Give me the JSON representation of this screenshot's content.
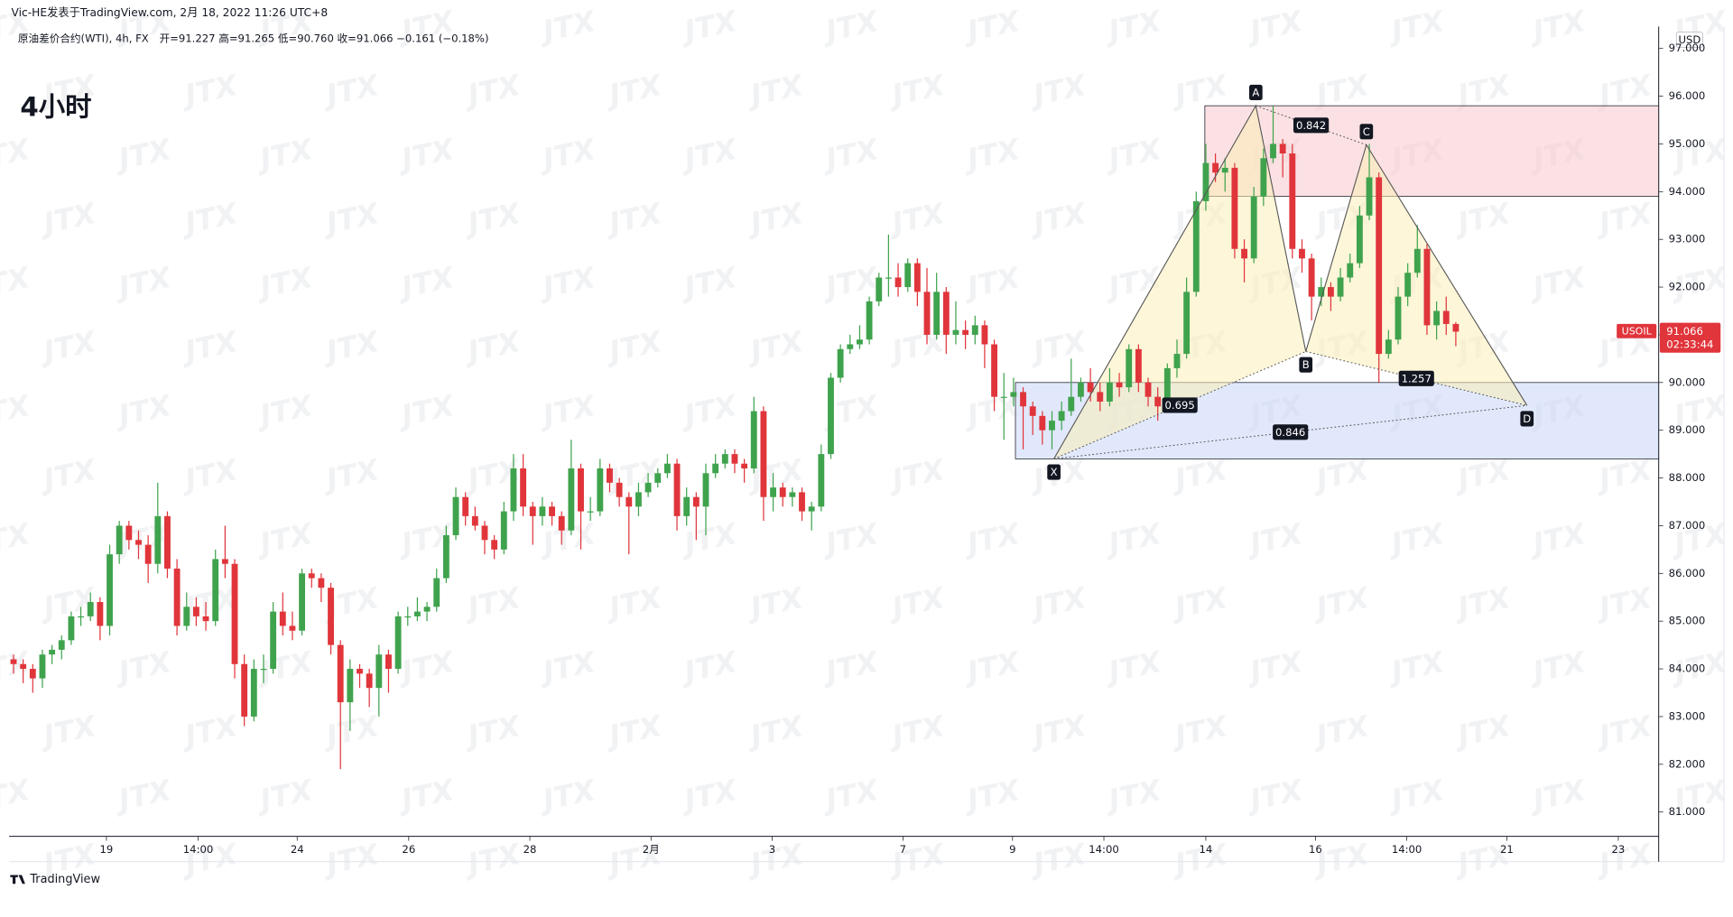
{
  "header": {
    "byline": "Vic-HE发表于TradingView.com, 2月 18, 2022 11:26 UTC+8",
    "symbol": "原油差价合约(WTI), 4h, FX",
    "legend": "开=91.227 高=91.265 低=90.760 收=91.066 −0.161 (−0.18%)"
  },
  "footer": {
    "logo": "TradingView"
  },
  "chart_data": {
    "type": "candlestick",
    "title": "4小时",
    "watermark": "JTX",
    "currency": "USD",
    "grid": false,
    "up_color": "#3fa34d",
    "down_color": "#e0353b",
    "ylim": [
      80.49,
      97.46
    ],
    "yticks": [
      {
        "value": 81,
        "label": "81.000"
      },
      {
        "value": 82,
        "label": "82.000"
      },
      {
        "value": 83,
        "label": "83.000"
      },
      {
        "value": 84,
        "label": "84.000"
      },
      {
        "value": 85,
        "label": "85.000"
      },
      {
        "value": 86,
        "label": "86.000"
      },
      {
        "value": 87,
        "label": "87.000"
      },
      {
        "value": 88,
        "label": "88.000"
      },
      {
        "value": 89,
        "label": "89.000"
      },
      {
        "value": 90,
        "label": "90.000"
      },
      {
        "value": 91,
        "label": "91.000"
      },
      {
        "value": 92,
        "label": "92.000"
      },
      {
        "value": 93,
        "label": "93.000"
      },
      {
        "value": 94,
        "label": "94.000"
      },
      {
        "value": 95,
        "label": "95.000"
      },
      {
        "value": 96,
        "label": "96.000"
      },
      {
        "value": 97,
        "label": "97.000"
      }
    ],
    "xlim": [
      -0.46,
      171.1
    ],
    "xticks": [
      {
        "value": 9.66,
        "label": "19"
      },
      {
        "value": 19.2,
        "label": "14:00"
      },
      {
        "value": 29.5,
        "label": "24"
      },
      {
        "value": 41.1,
        "label": "26"
      },
      {
        "value": 53.7,
        "label": "28"
      },
      {
        "value": 66.3,
        "label": "2月"
      },
      {
        "value": 78.9,
        "label": "3"
      },
      {
        "value": 92.5,
        "label": "7"
      },
      {
        "value": 103.9,
        "label": "9"
      },
      {
        "value": 113.4,
        "label": "14:00"
      },
      {
        "value": 124.0,
        "label": "14"
      },
      {
        "value": 135.4,
        "label": "16"
      },
      {
        "value": 144.9,
        "label": "14:00"
      },
      {
        "value": 155.3,
        "label": "21"
      },
      {
        "value": 166.9,
        "label": "23"
      }
    ],
    "last_price": {
      "symbol": "USOIL",
      "value": 91.066,
      "countdown": "02:33:44"
    },
    "zones": [
      {
        "from": 123.9,
        "top": 95.8,
        "bottom": 93.9,
        "color": "#f7c9cc"
      },
      {
        "from": 104.2,
        "top": 90.0,
        "bottom": 88.4,
        "color": "#c9d5f7"
      }
    ],
    "pattern": {
      "points": [
        {
          "label": "X",
          "x": 108.2,
          "y": 88.4
        },
        {
          "label": "A",
          "x": 129.2,
          "y": 95.8
        },
        {
          "label": "B",
          "x": 134.4,
          "y": 90.65
        },
        {
          "label": "C",
          "x": 140.7,
          "y": 94.98
        },
        {
          "label": "D",
          "x": 157.4,
          "y": 89.52
        }
      ],
      "ratios": [
        0.695,
        0.842,
        1.257,
        0.846
      ]
    },
    "candles": [
      [
        84.2,
        84.3,
        83.9,
        84.1
      ],
      [
        84.1,
        84.2,
        83.7,
        84.0
      ],
      [
        84.0,
        84.1,
        83.5,
        83.8
      ],
      [
        83.8,
        84.4,
        83.6,
        84.3
      ],
      [
        84.3,
        84.5,
        84.1,
        84.4
      ],
      [
        84.4,
        84.7,
        84.2,
        84.6
      ],
      [
        84.6,
        85.2,
        84.5,
        85.1
      ],
      [
        85.1,
        85.3,
        84.9,
        85.1
      ],
      [
        85.1,
        85.6,
        85.0,
        85.4
      ],
      [
        85.4,
        85.5,
        84.6,
        84.9
      ],
      [
        84.9,
        86.6,
        84.7,
        86.4
      ],
      [
        86.4,
        87.1,
        86.2,
        87.0
      ],
      [
        87.0,
        87.1,
        86.5,
        86.7
      ],
      [
        86.7,
        86.9,
        86.3,
        86.6
      ],
      [
        86.6,
        86.8,
        85.8,
        86.2
      ],
      [
        86.2,
        87.9,
        86.0,
        87.2
      ],
      [
        87.2,
        87.3,
        85.9,
        86.1
      ],
      [
        86.1,
        86.3,
        84.7,
        84.9
      ],
      [
        84.9,
        85.6,
        84.8,
        85.3
      ],
      [
        85.3,
        85.5,
        84.9,
        85.1
      ],
      [
        85.1,
        85.4,
        84.8,
        85.0
      ],
      [
        85.0,
        86.5,
        84.9,
        86.3
      ],
      [
        86.3,
        87.0,
        85.9,
        86.2
      ],
      [
        86.2,
        86.3,
        83.8,
        84.1
      ],
      [
        84.1,
        84.3,
        82.8,
        83.0
      ],
      [
        83.0,
        84.2,
        82.9,
        84.0
      ],
      [
        84.0,
        84.3,
        83.7,
        84.0
      ],
      [
        84.0,
        85.4,
        83.9,
        85.2
      ],
      [
        85.2,
        85.6,
        84.7,
        84.9
      ],
      [
        84.9,
        85.2,
        84.6,
        84.8
      ],
      [
        84.8,
        86.1,
        84.7,
        86.0
      ],
      [
        86.0,
        86.1,
        85.7,
        85.9
      ],
      [
        85.9,
        86.0,
        85.4,
        85.7
      ],
      [
        85.7,
        85.8,
        84.3,
        84.5
      ],
      [
        84.5,
        84.6,
        81.9,
        83.3
      ],
      [
        83.3,
        84.2,
        82.7,
        84.0
      ],
      [
        84.0,
        84.1,
        83.6,
        83.9
      ],
      [
        83.9,
        84.0,
        83.2,
        83.6
      ],
      [
        83.6,
        84.5,
        83.0,
        84.3
      ],
      [
        84.3,
        84.4,
        83.5,
        84.0
      ],
      [
        84.0,
        85.2,
        83.9,
        85.1
      ],
      [
        85.1,
        85.3,
        84.9,
        85.1
      ],
      [
        85.1,
        85.5,
        85.0,
        85.2
      ],
      [
        85.2,
        85.4,
        85.0,
        85.3
      ],
      [
        85.3,
        86.1,
        85.2,
        85.9
      ],
      [
        85.9,
        87.0,
        85.8,
        86.8
      ],
      [
        86.8,
        87.8,
        86.7,
        87.6
      ],
      [
        87.6,
        87.7,
        87.0,
        87.2
      ],
      [
        87.2,
        87.4,
        86.9,
        87.0
      ],
      [
        87.0,
        87.1,
        86.4,
        86.7
      ],
      [
        86.7,
        86.8,
        86.3,
        86.5
      ],
      [
        86.5,
        87.5,
        86.4,
        87.3
      ],
      [
        87.3,
        88.5,
        87.1,
        88.2
      ],
      [
        88.2,
        88.5,
        87.2,
        87.4
      ],
      [
        87.4,
        87.5,
        86.6,
        87.2
      ],
      [
        87.2,
        87.6,
        87.0,
        87.4
      ],
      [
        87.4,
        87.5,
        87.0,
        87.2
      ],
      [
        87.2,
        87.3,
        86.6,
        86.9
      ],
      [
        86.9,
        88.8,
        86.8,
        88.2
      ],
      [
        88.2,
        88.3,
        86.5,
        87.3
      ],
      [
        87.3,
        87.6,
        87.1,
        87.3
      ],
      [
        87.3,
        88.4,
        87.2,
        88.2
      ],
      [
        88.2,
        88.3,
        87.7,
        87.9
      ],
      [
        87.9,
        88.0,
        87.4,
        87.6
      ],
      [
        87.6,
        87.7,
        86.4,
        87.4
      ],
      [
        87.4,
        87.9,
        87.2,
        87.7
      ],
      [
        87.7,
        88.1,
        87.6,
        87.9
      ],
      [
        87.9,
        88.2,
        87.8,
        88.1
      ],
      [
        88.1,
        88.5,
        88.0,
        88.3
      ],
      [
        88.3,
        88.4,
        86.9,
        87.2
      ],
      [
        87.2,
        87.8,
        87.0,
        87.6
      ],
      [
        87.6,
        87.7,
        86.7,
        87.4
      ],
      [
        87.4,
        88.3,
        86.8,
        88.1
      ],
      [
        88.1,
        88.5,
        88.0,
        88.3
      ],
      [
        88.3,
        88.6,
        88.2,
        88.5
      ],
      [
        88.5,
        88.6,
        88.1,
        88.3
      ],
      [
        88.3,
        88.4,
        87.9,
        88.2
      ],
      [
        88.2,
        89.7,
        88.1,
        89.4
      ],
      [
        89.4,
        89.5,
        87.1,
        87.6
      ],
      [
        87.6,
        88.1,
        87.3,
        87.8
      ],
      [
        87.8,
        87.9,
        87.4,
        87.6
      ],
      [
        87.6,
        87.8,
        87.4,
        87.7
      ],
      [
        87.7,
        87.8,
        87.1,
        87.3
      ],
      [
        87.3,
        87.5,
        86.9,
        87.4
      ],
      [
        87.4,
        88.7,
        87.3,
        88.5
      ],
      [
        88.5,
        90.2,
        88.4,
        90.1
      ],
      [
        90.1,
        90.8,
        90.0,
        90.7
      ],
      [
        90.7,
        91.0,
        90.6,
        90.8
      ],
      [
        90.8,
        91.2,
        90.7,
        90.9
      ],
      [
        90.9,
        91.8,
        90.8,
        91.7
      ],
      [
        91.7,
        92.3,
        91.6,
        92.2
      ],
      [
        92.2,
        93.1,
        91.8,
        92.2
      ],
      [
        92.2,
        92.5,
        91.8,
        92.0
      ],
      [
        92.0,
        92.6,
        91.9,
        92.5
      ],
      [
        92.5,
        92.6,
        91.6,
        91.9
      ],
      [
        91.9,
        92.4,
        90.8,
        91.0
      ],
      [
        91.0,
        92.3,
        90.9,
        91.9
      ],
      [
        91.9,
        92.0,
        90.6,
        91.0
      ],
      [
        91.0,
        91.7,
        90.8,
        91.1
      ],
      [
        91.1,
        91.3,
        90.7,
        91.0
      ],
      [
        91.0,
        91.4,
        90.8,
        91.2
      ],
      [
        91.2,
        91.3,
        90.3,
        90.8
      ],
      [
        90.8,
        90.9,
        89.4,
        89.7
      ],
      [
        89.7,
        90.2,
        88.8,
        89.7
      ],
      [
        89.7,
        90.1,
        89.5,
        89.8
      ],
      [
        89.8,
        89.9,
        88.6,
        89.5
      ],
      [
        89.5,
        89.6,
        88.9,
        89.3
      ],
      [
        89.3,
        89.4,
        88.7,
        89.0
      ],
      [
        89.0,
        89.4,
        88.6,
        89.2
      ],
      [
        89.2,
        89.6,
        89.0,
        89.4
      ],
      [
        89.4,
        90.5,
        89.3,
        89.7
      ],
      [
        89.7,
        90.1,
        89.6,
        90.0
      ],
      [
        90.0,
        90.3,
        89.6,
        89.8
      ],
      [
        89.8,
        90.0,
        89.4,
        89.6
      ],
      [
        89.6,
        90.3,
        89.5,
        90.0
      ],
      [
        90.0,
        90.2,
        89.7,
        89.9
      ],
      [
        89.9,
        90.8,
        89.8,
        90.7
      ],
      [
        90.7,
        90.8,
        89.8,
        90.0
      ],
      [
        90.0,
        90.1,
        89.5,
        89.7
      ],
      [
        89.7,
        89.9,
        89.2,
        89.5
      ],
      [
        89.5,
        90.4,
        89.4,
        90.3
      ],
      [
        90.3,
        90.9,
        90.1,
        90.6
      ],
      [
        90.6,
        92.2,
        90.5,
        91.9
      ],
      [
        91.9,
        94.0,
        91.8,
        93.8
      ],
      [
        93.8,
        95.0,
        93.6,
        94.6
      ],
      [
        94.6,
        94.8,
        94.2,
        94.4
      ],
      [
        94.4,
        94.7,
        94.0,
        94.5
      ],
      [
        94.5,
        94.6,
        92.6,
        92.8
      ],
      [
        92.8,
        93.0,
        92.1,
        92.6
      ],
      [
        92.6,
        94.1,
        92.5,
        93.9
      ],
      [
        93.9,
        94.9,
        93.7,
        94.7
      ],
      [
        94.7,
        95.8,
        94.6,
        95.0
      ],
      [
        95.0,
        95.1,
        94.3,
        94.8
      ],
      [
        94.8,
        95.0,
        92.6,
        92.8
      ],
      [
        92.8,
        93.0,
        92.3,
        92.6
      ],
      [
        92.6,
        92.7,
        91.3,
        91.8
      ],
      [
        91.8,
        92.2,
        91.6,
        92.0
      ],
      [
        92.0,
        92.1,
        91.5,
        91.8
      ],
      [
        91.8,
        92.4,
        91.7,
        92.2
      ],
      [
        92.2,
        92.7,
        92.1,
        92.5
      ],
      [
        92.5,
        93.7,
        92.4,
        93.5
      ],
      [
        93.5,
        95.0,
        93.4,
        94.3
      ],
      [
        94.3,
        94.4,
        90.0,
        90.6
      ],
      [
        90.6,
        91.1,
        90.5,
        90.9
      ],
      [
        90.9,
        92.0,
        90.8,
        91.8
      ],
      [
        91.8,
        92.5,
        91.6,
        92.3
      ],
      [
        92.3,
        93.3,
        92.2,
        92.8
      ],
      [
        92.8,
        92.9,
        91.0,
        91.2
      ],
      [
        91.2,
        91.7,
        90.9,
        91.5
      ],
      [
        91.5,
        91.8,
        91.0,
        91.227
      ],
      [
        91.227,
        91.265,
        90.76,
        91.066
      ]
    ]
  }
}
